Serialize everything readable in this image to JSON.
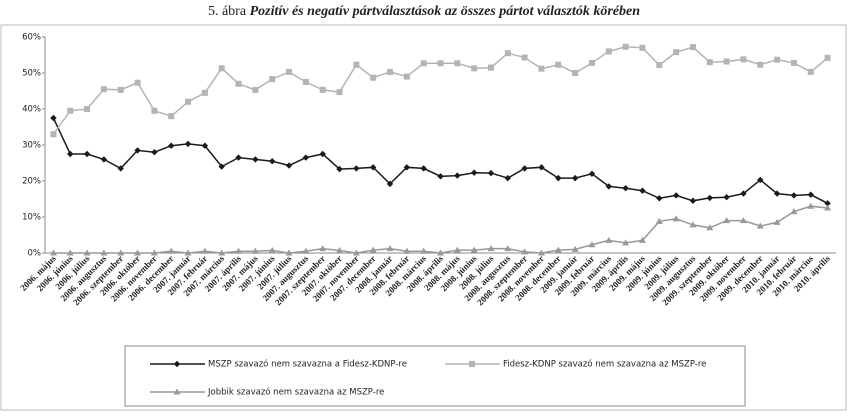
{
  "chart_data": {
    "type": "line",
    "figure_label": "5. ábra",
    "title": "Pozitív és negatív pártválasztások az összes pártot választók körében",
    "categories": [
      "2006. május",
      "2006. június",
      "2006. július",
      "2006. augusztus",
      "2006. szeptember",
      "2006. október",
      "2006. november",
      "2006. december",
      "2007. január",
      "2007. február",
      "2007. március",
      "2007. április",
      "2007. május",
      "2007. június",
      "2007. július",
      "2007. augusztus",
      "2007. szeptember",
      "2007. október",
      "2007. november",
      "2007. december",
      "2008. január",
      "2008. február",
      "2008. március",
      "2008. április",
      "2008. május",
      "2008. június",
      "2008. július",
      "2008. augusztus",
      "2008. szeptember",
      "2008. november",
      "2008. december",
      "2009. január",
      "2009. február",
      "2009. március",
      "2009. április",
      "2009. május",
      "2009. június",
      "2009. július",
      "2009. augusztus",
      "2009. szeptember",
      "2009. október",
      "2009. november",
      "2009. december",
      "2010. január",
      "2010. február",
      "2010. március",
      "2010. április"
    ],
    "series": [
      {
        "name": "MSZP szavazó nem szavazna a Fidesz-KDNP-re",
        "color": "#1a1a1a",
        "marker": "diamond",
        "values": [
          37.5,
          27.5,
          27.5,
          26,
          23.5,
          28.5,
          28,
          29.8,
          30.3,
          29.8,
          24,
          26.5,
          26,
          25.5,
          24.3,
          26.5,
          27.5,
          23.3,
          23.5,
          23.8,
          19.2,
          23.8,
          23.5,
          21.3,
          21.5,
          22.3,
          22.2,
          20.8,
          23.5,
          23.8,
          20.8,
          20.8,
          22,
          18.5,
          18,
          17.3,
          15.2,
          16,
          14.5,
          15.3,
          15.5,
          16.5,
          20.3,
          16.5,
          16,
          16.2,
          13.8
        ]
      },
      {
        "name": "Fidesz-KDNP szavazó nem szavazna az MSZP-re",
        "color": "#b4b4b4",
        "marker": "square",
        "values": [
          33,
          39.5,
          40,
          45.5,
          45.3,
          47.3,
          39.5,
          38,
          42,
          44.5,
          51.3,
          47,
          45.3,
          48.3,
          50.3,
          47.5,
          45.3,
          44.7,
          52.3,
          48.7,
          50.3,
          49,
          52.7,
          52.7,
          52.7,
          51.3,
          51.5,
          55.5,
          54.3,
          51.2,
          52.3,
          50,
          52.8,
          56,
          57.3,
          57,
          52.2,
          55.8,
          57.2,
          53,
          53.2,
          53.8,
          52.3,
          53.7,
          52.8,
          50.3,
          54.2
        ]
      },
      {
        "name": "Jobbik szavazó nem szavazna az MSZP-re",
        "color": "#999999",
        "marker": "triangle",
        "values": [
          0,
          0,
          0,
          0,
          0,
          0,
          0,
          0.5,
          0,
          0.5,
          0,
          0.5,
          0.5,
          0.7,
          0,
          0.5,
          1.2,
          0.7,
          0,
          0.8,
          1.2,
          0.5,
          0.5,
          0,
          0.8,
          0.8,
          1.2,
          1.2,
          0.3,
          0,
          0.8,
          1,
          2.3,
          3.5,
          2.8,
          3.5,
          8.8,
          9.5,
          7.8,
          7,
          9,
          9,
          7.5,
          8.5,
          11.5,
          13,
          12.5
        ]
      }
    ],
    "ylim": [
      0,
      60
    ],
    "yticks": [
      {
        "value": 0,
        "label": "0%"
      },
      {
        "value": 10,
        "label": "10%"
      },
      {
        "value": 20,
        "label": "20%"
      },
      {
        "value": 30,
        "label": "30%"
      },
      {
        "value": 40,
        "label": "40%"
      },
      {
        "value": 50,
        "label": "50%"
      },
      {
        "value": 60,
        "label": "60%"
      }
    ],
    "grid": false
  }
}
